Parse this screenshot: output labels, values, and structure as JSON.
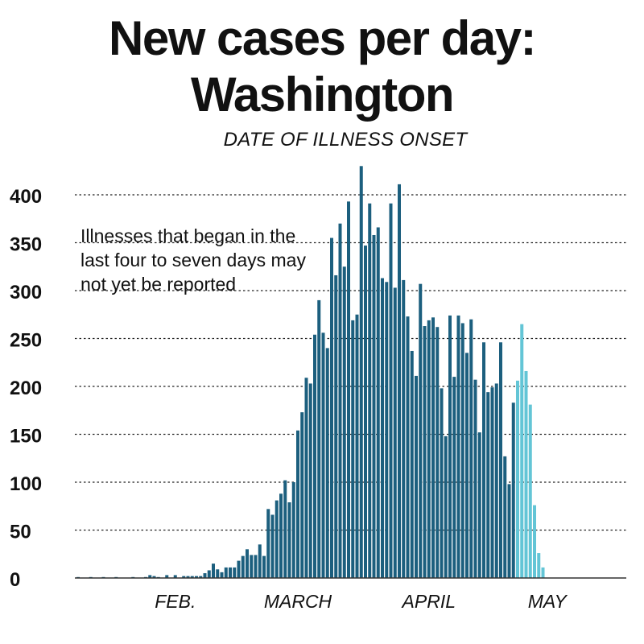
{
  "chart_data": {
    "type": "bar",
    "title": "New cases per day: Washington",
    "title_lines": [
      "New cases per day:",
      "Washington"
    ],
    "subtitle": "DATE OF ILLNESS ONSET",
    "annotation": "Illnesses that began in the last four to seven days may not yet be reported",
    "y_ticks": [
      400,
      350,
      300,
      250,
      200,
      150,
      100,
      50,
      0
    ],
    "ylim": [
      0,
      440
    ],
    "grid": "dotted horizontal lines",
    "x_month_labels": [
      "FEB.",
      "MARCH",
      "APRIL",
      "MAY"
    ],
    "start_date": "2020-01-23",
    "colors": {
      "reported": "#1c5f7e",
      "incomplete": "#63c5d6",
      "text": "#111111"
    },
    "series": [
      {
        "status": "reported",
        "values": [
          1,
          0,
          0,
          1,
          0,
          0,
          1,
          0,
          0,
          1,
          0,
          0,
          0,
          1,
          0,
          0,
          1,
          3,
          2,
          1,
          0,
          3,
          0,
          3,
          0,
          2,
          2,
          2,
          2,
          2,
          5,
          8,
          15,
          9,
          6,
          11,
          11,
          11,
          18,
          23,
          30,
          24,
          24,
          35,
          23,
          72,
          66,
          81,
          88,
          102,
          79,
          100,
          154,
          173,
          209,
          203,
          254,
          290,
          256,
          240,
          355,
          316,
          370,
          325,
          393,
          269,
          275,
          430,
          347,
          391,
          358,
          366,
          313,
          309,
          391,
          303,
          411,
          311,
          273,
          237,
          211,
          307,
          263,
          269,
          272,
          262,
          198,
          148,
          274,
          210,
          274,
          266,
          235,
          270,
          207,
          152,
          246,
          194,
          199,
          203,
          246,
          127,
          98,
          183
        ]
      },
      {
        "status": "incomplete",
        "values": [
          206,
          265,
          216,
          181,
          76,
          26,
          11
        ]
      }
    ]
  }
}
